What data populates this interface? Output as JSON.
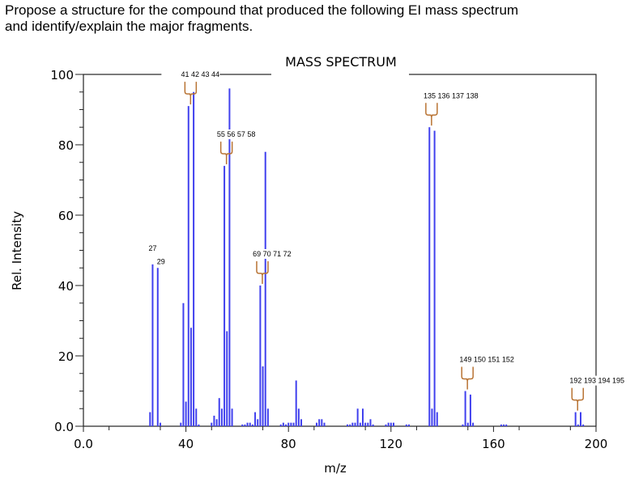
{
  "question": [
    "Propose a structure for the compound that produced the following EI mass spectrum",
    "and identify/explain the major fragments."
  ],
  "chart_data": {
    "type": "bar",
    "title": "MASS SPECTRUM",
    "xlabel": "m/z",
    "ylabel": "Rel. Intensity",
    "xlim": [
      0,
      200
    ],
    "ylim": [
      0,
      100
    ],
    "xticks": [
      "0.0",
      "40",
      "80",
      "120",
      "160",
      "200"
    ],
    "yticks": [
      "0.0",
      "20",
      "40",
      "60",
      "80",
      "100"
    ],
    "bar_color": "#4040ee",
    "bracket_color": "#b87333",
    "peaks": [
      [
        26,
        4
      ],
      [
        27,
        46
      ],
      [
        29,
        45
      ],
      [
        30,
        1
      ],
      [
        38,
        1
      ],
      [
        39,
        35
      ],
      [
        40,
        7
      ],
      [
        41,
        91
      ],
      [
        42,
        28
      ],
      [
        43,
        95
      ],
      [
        44,
        5
      ],
      [
        45,
        0.5
      ],
      [
        50,
        1
      ],
      [
        51,
        3
      ],
      [
        52,
        2
      ],
      [
        53,
        8
      ],
      [
        54,
        5
      ],
      [
        55,
        74
      ],
      [
        56,
        27
      ],
      [
        57,
        96
      ],
      [
        58,
        5
      ],
      [
        62,
        0.5
      ],
      [
        63,
        0.5
      ],
      [
        64,
        1
      ],
      [
        65,
        1
      ],
      [
        66,
        0.5
      ],
      [
        67,
        4
      ],
      [
        68,
        2
      ],
      [
        69,
        40
      ],
      [
        70,
        17
      ],
      [
        71,
        78
      ],
      [
        72,
        5
      ],
      [
        77,
        0.5
      ],
      [
        78,
        1
      ],
      [
        79,
        0.5
      ],
      [
        80,
        1
      ],
      [
        81,
        1
      ],
      [
        82,
        1
      ],
      [
        83,
        13
      ],
      [
        84,
        5
      ],
      [
        85,
        2
      ],
      [
        91,
        1
      ],
      [
        92,
        2
      ],
      [
        93,
        2
      ],
      [
        94,
        1
      ],
      [
        103,
        0.5
      ],
      [
        104,
        0.5
      ],
      [
        105,
        1
      ],
      [
        106,
        1
      ],
      [
        107,
        5
      ],
      [
        108,
        1
      ],
      [
        109,
        5
      ],
      [
        110,
        1
      ],
      [
        111,
        1
      ],
      [
        112,
        2
      ],
      [
        113,
        0.5
      ],
      [
        118,
        0.5
      ],
      [
        119,
        1
      ],
      [
        120,
        1
      ],
      [
        121,
        1
      ],
      [
        126,
        0.5
      ],
      [
        127,
        0.5
      ],
      [
        135,
        85
      ],
      [
        136,
        5
      ],
      [
        137,
        84
      ],
      [
        138,
        4
      ],
      [
        148,
        0.5
      ],
      [
        149,
        10
      ],
      [
        150,
        1
      ],
      [
        151,
        9
      ],
      [
        152,
        1
      ],
      [
        163,
        0.5
      ],
      [
        164,
        0.5
      ],
      [
        165,
        0.5
      ],
      [
        192,
        4
      ],
      [
        193,
        0.5
      ],
      [
        194,
        4
      ],
      [
        195,
        0.5
      ]
    ],
    "annotations": [
      {
        "text": "27",
        "mz": 27,
        "height": 46
      },
      {
        "text": "29",
        "mz": 29,
        "height": 45
      },
      {
        "text": "41 42 43 44",
        "from": 41,
        "to": 44,
        "height": 91
      },
      {
        "text": "55 56 57 58",
        "from": 55,
        "to": 58,
        "height": 74
      },
      {
        "text": "69 70 71 72",
        "from": 69,
        "to": 72,
        "height": 40
      },
      {
        "text": "135 136 137 138",
        "from": 135,
        "to": 138,
        "height": 85
      },
      {
        "text": "149 150 151 152",
        "from": 149,
        "to": 152,
        "height": 10
      },
      {
        "text": "192 193 194 195",
        "from": 192,
        "to": 195,
        "height": 4
      }
    ]
  }
}
